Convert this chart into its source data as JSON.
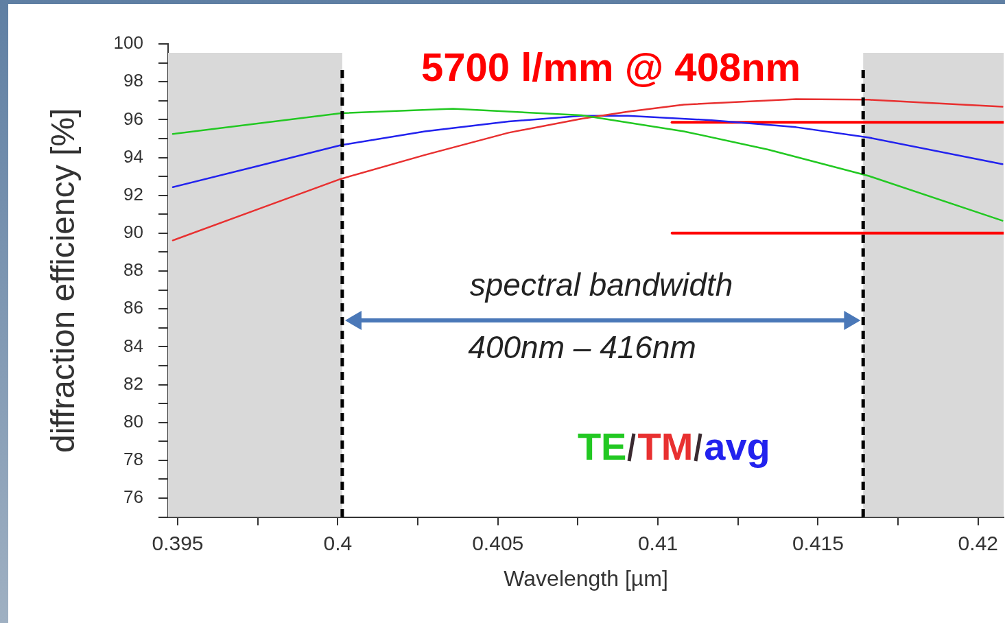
{
  "chart_data": {
    "type": "line",
    "title": "5700 l/mm @ 408nm",
    "xlabel": "Wavelength [µm]",
    "ylabel": "diffraction efficiency [%]",
    "xlim": [
      0.3947,
      0.4208
    ],
    "ylim": [
      75,
      100
    ],
    "xticks": [
      0.395,
      {
        "value": 0.3975,
        "label": null
      },
      0.4,
      {
        "value": 0.4025,
        "label": null
      },
      0.405,
      {
        "value": 0.4075,
        "label": null
      },
      0.41,
      {
        "value": 0.4125,
        "label": null
      },
      0.415,
      {
        "value": 0.4175,
        "label": null
      },
      0.42
    ],
    "yticks": [
      {
        "value": 75,
        "label": null
      },
      76,
      {
        "value": 77,
        "label": null
      },
      78,
      {
        "value": 79,
        "label": null
      },
      80,
      {
        "value": 81,
        "label": null
      },
      82,
      {
        "value": 83,
        "label": null
      },
      84,
      {
        "value": 85,
        "label": null
      },
      86,
      {
        "value": 87,
        "label": null
      },
      88,
      {
        "value": 89,
        "label": null
      },
      90,
      {
        "value": 91,
        "label": null
      },
      92,
      {
        "value": 93,
        "label": null
      },
      94,
      {
        "value": 95,
        "label": null
      },
      96,
      {
        "value": 97,
        "label": null
      },
      98,
      {
        "value": 99,
        "label": null
      },
      100
    ],
    "grid": false,
    "legend": "bottom right",
    "marker": "none",
    "series": [
      {
        "name": "TE",
        "color": "#22c822",
        "x": [
          0.39485,
          0.4001,
          0.4036,
          0.40762,
          0.41081,
          0.41344,
          0.41659,
          0.42076
        ],
        "values": [
          95.24,
          96.34,
          96.57,
          96.23,
          95.38,
          94.42,
          93.02,
          90.66
        ]
      },
      {
        "name": "TM",
        "color": "#e83030",
        "x": [
          0.39485,
          0.39748,
          0.4001,
          0.40272,
          0.40534,
          0.40762,
          0.40906,
          0.41081,
          0.41431,
          0.41659,
          0.41868,
          0.42076
        ],
        "values": [
          89.62,
          91.25,
          92.87,
          94.13,
          95.31,
          96.05,
          96.42,
          96.79,
          97.08,
          97.05,
          96.86,
          96.68
        ]
      },
      {
        "name": "avg",
        "color": "#2222ee",
        "x": [
          0.39485,
          0.39748,
          0.4001,
          0.40272,
          0.40534,
          0.40762,
          0.40906,
          0.41168,
          0.41431,
          0.41659,
          0.42076
        ],
        "values": [
          92.43,
          93.54,
          94.65,
          95.38,
          95.9,
          96.2,
          96.2,
          95.97,
          95.6,
          95.05,
          93.65
        ]
      },
      {
        "type": "line",
        "color": "#ff0000",
        "x": [
          0.41044,
          0.4208
        ],
        "values": [
          95.86,
          95.86
        ]
      },
      {
        "type": "line",
        "color": "#ff0000",
        "x": [
          0.41044,
          0.4208
        ],
        "values": [
          90,
          90
        ]
      }
    ],
    "ref_lines": [
      {
        "axis": "x",
        "value": 0.40014,
        "color": "#000000",
        "line_style": "dashed"
      },
      {
        "axis": "x",
        "value": 0.41641,
        "color": "#000000",
        "line_style": "dashed"
      }
    ],
    "bands": [
      {
        "axis": "x",
        "from": 0.3947,
        "to": 0.40014,
        "color": "#d9d9d9"
      },
      {
        "axis": "x",
        "from": 0.41641,
        "to": 0.4208,
        "color": "#d9d9d9"
      }
    ],
    "annotations": [
      "spectral bandwidth",
      "400nm – 416nm"
    ]
  }
}
